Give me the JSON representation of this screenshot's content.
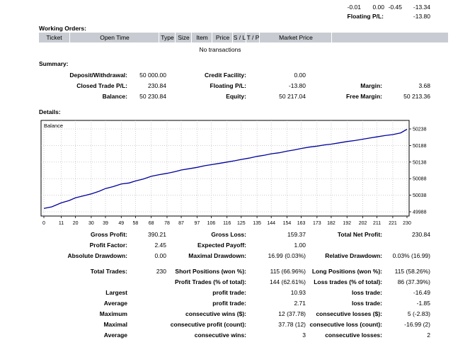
{
  "top_values": {
    "a": "-0.01",
    "b": "0.00",
    "c": "-0.45",
    "d": "-13.34"
  },
  "top_floating": {
    "label": "Floating P/L:",
    "value": "-13.80"
  },
  "working_orders": {
    "title": "Working Orders:",
    "columns": [
      "Ticket",
      "Open Time",
      "Type",
      "Size",
      "Item",
      "Price",
      "S / L",
      "T / P",
      "Market Price",
      ""
    ],
    "empty_text": "No transactions"
  },
  "summary": {
    "title": "Summary:",
    "deposit_label": "Deposit/Withdrawal:",
    "deposit_value": "50 000.00",
    "credit_label": "Credit Facility:",
    "credit_value": "0.00",
    "closed_label": "Closed Trade P/L:",
    "closed_value": "230.84",
    "floating_label": "Floating P/L:",
    "floating_value": "-13.80",
    "margin_label": "Margin:",
    "margin_value": "3.68",
    "balance_label": "Balance:",
    "balance_value": "50 230.84",
    "equity_label": "Equity:",
    "equity_value": "50 217.04",
    "free_margin_label": "Free Margin:",
    "free_margin_value": "50 213.36"
  },
  "details_title": "Details:",
  "chart_data": {
    "type": "line",
    "title": "Balance",
    "x_ticks": [
      "0",
      "11",
      "20",
      "30",
      "39",
      "49",
      "58",
      "68",
      "78",
      "87",
      "97",
      "106",
      "116",
      "125",
      "135",
      "144",
      "154",
      "163",
      "173",
      "182",
      "192",
      "202",
      "211",
      "221",
      "230"
    ],
    "y_ticks": [
      "50238",
      "50188",
      "50138",
      "50088",
      "50038",
      "49988"
    ],
    "xlim": [
      0,
      230
    ],
    "ylim": [
      49988,
      50238
    ],
    "grid": true,
    "line_color": "#00009c",
    "series": [
      {
        "x": [
          0,
          5,
          11,
          16,
          20,
          25,
          30,
          35,
          39,
          44,
          49,
          54,
          58,
          63,
          68,
          73,
          78,
          83,
          87,
          92,
          97,
          102,
          106,
          111,
          116,
          121,
          125,
          130,
          135,
          140,
          144,
          149,
          154,
          159,
          163,
          168,
          173,
          178,
          182,
          187,
          192,
          197,
          202,
          207,
          211,
          216,
          221,
          226,
          230
        ],
        "y": [
          49998,
          50003,
          50015,
          50022,
          50030,
          50036,
          50042,
          50050,
          50058,
          50064,
          50072,
          50075,
          50081,
          50087,
          50095,
          50100,
          50104,
          50109,
          50114,
          50118,
          50122,
          50127,
          50130,
          50134,
          50138,
          50142,
          50146,
          50150,
          50155,
          50159,
          50163,
          50166,
          50171,
          50175,
          50179,
          50183,
          50186,
          50190,
          50192,
          50196,
          50200,
          50203,
          50207,
          50211,
          50214,
          50218,
          50221,
          50226,
          50237
        ]
      }
    ]
  },
  "stats": {
    "gross_profit_label": "Gross Profit:",
    "gross_profit_value": "390.21",
    "gross_loss_label": "Gross Loss:",
    "gross_loss_value": "159.37",
    "total_net_label": "Total Net Profit:",
    "total_net_value": "230.84",
    "profit_factor_label": "Profit Factor:",
    "profit_factor_value": "2.45",
    "expected_payoff_label": "Expected Payoff:",
    "expected_payoff_value": "1.00",
    "abs_dd_label": "Absolute Drawdown:",
    "abs_dd_value": "0.00",
    "max_dd_label": "Maximal Drawdown:",
    "max_dd_value": "16.99 (0.03%)",
    "rel_dd_label": "Relative Drawdown:",
    "rel_dd_value": "0.03% (16.99)",
    "total_trades_label": "Total Trades:",
    "total_trades_value": "230",
    "short_label": "Short Positions (won %):",
    "short_value": "115 (66.96%)",
    "long_label": "Long Positions (won %):",
    "long_value": "115 (58.26%)",
    "profit_trades_label": "Profit Trades (% of total):",
    "profit_trades_value": "144 (62.61%)",
    "loss_trades_label": "Loss trades (% of total):",
    "loss_trades_value": "86 (37.39%)",
    "largest_label": "Largest",
    "largest_profit_label": "profit trade:",
    "largest_profit_value": "10.93",
    "largest_loss_label": "loss trade:",
    "largest_loss_value": "-16.49",
    "average_label": "Average",
    "average_profit_label": "profit trade:",
    "average_profit_value": "2.71",
    "average_loss_label": "loss trade:",
    "average_loss_value": "-1.85",
    "maximum_label": "Maximum",
    "max_wins_label": "consecutive wins ($):",
    "max_wins_value": "12 (37.78)",
    "max_losses_label": "consecutive losses ($):",
    "max_losses_value": "5 (-2.83)",
    "maximal_label": "Maximal",
    "maximal_profit_label": "consecutive profit (count):",
    "maximal_profit_value": "37.78 (12)",
    "maximal_loss_label": "consecutive loss (count):",
    "maximal_loss_value": "-16.99 (2)",
    "avg2_label": "Average",
    "avg_wins_label": "consecutive wins:",
    "avg_wins_value": "3",
    "avg_losses_label": "consecutive losses:",
    "avg_losses_value": "2"
  }
}
